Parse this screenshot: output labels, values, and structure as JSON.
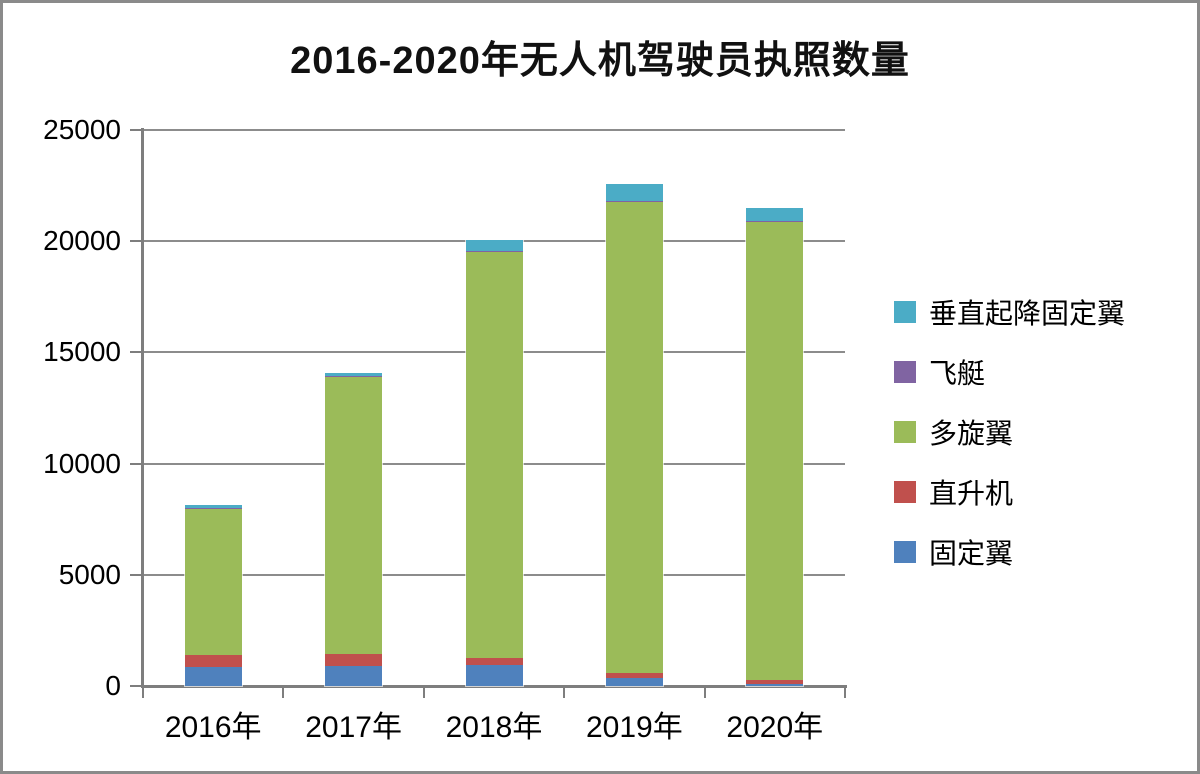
{
  "window": {
    "background_color": "#ffffff",
    "border_color": "#8a8a8a"
  },
  "chart_data": {
    "type": "bar",
    "stacked": true,
    "title": "2016-2020年无人机驾驶员执照数量",
    "xlabel": "",
    "ylabel": "",
    "categories": [
      "2016年",
      "2017年",
      "2018年",
      "2019年",
      "2020年"
    ],
    "series": [
      {
        "id": "fixed-wing",
        "name": "固定翼",
        "color": "#4F81BD",
        "values": [
          850,
          900,
          950,
          350,
          80
        ]
      },
      {
        "id": "helicopter",
        "name": "直升机",
        "color": "#C0504D",
        "values": [
          550,
          520,
          310,
          230,
          200
        ]
      },
      {
        "id": "multi-rotor",
        "name": "多旋翼",
        "color": "#9BBB59",
        "values": [
          6600,
          12500,
          18300,
          21200,
          20600
        ]
      },
      {
        "id": "airship",
        "name": "飞艇",
        "color": "#8064A2",
        "values": [
          10,
          10,
          10,
          10,
          10
        ]
      },
      {
        "id": "vtol-fixed-wing",
        "name": "垂直起降固定翼",
        "color": "#4BACC6",
        "values": [
          130,
          130,
          480,
          780,
          610
        ]
      }
    ],
    "totals": [
      8140,
      14060,
      20050,
      22570,
      21500
    ],
    "ylim": [
      0,
      25000
    ],
    "yticks": [
      0,
      5000,
      10000,
      15000,
      20000,
      25000
    ],
    "ytick_labels": [
      "0",
      "5000",
      "10000",
      "15000",
      "20000",
      "25000"
    ],
    "grid": true,
    "legend_position": "right",
    "legend_order_top_to_bottom": [
      "垂直起降固定翼",
      "飞艇",
      "多旋翼",
      "直升机",
      "固定翼"
    ],
    "axis_color": "#7e7e7e",
    "gridline_color": "#8c8c8c"
  }
}
